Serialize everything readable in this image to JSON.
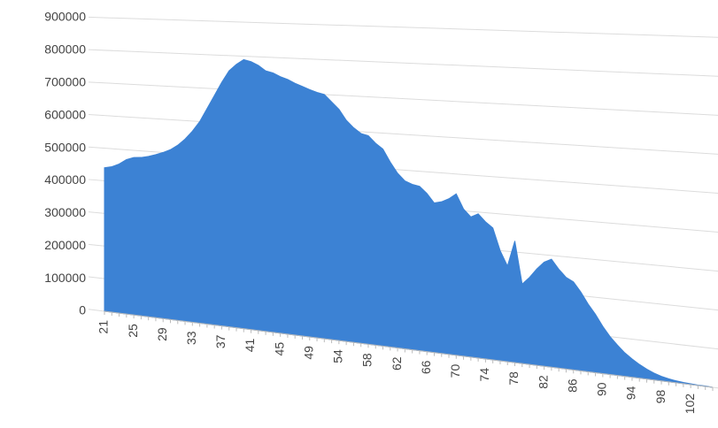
{
  "chart_data": {
    "type": "area",
    "categories": [
      21,
      null,
      null,
      null,
      25,
      null,
      null,
      null,
      29,
      null,
      null,
      null,
      33,
      null,
      null,
      null,
      37,
      null,
      null,
      null,
      41,
      null,
      null,
      null,
      45,
      null,
      null,
      null,
      49,
      null,
      null,
      null,
      54,
      null,
      null,
      null,
      58,
      null,
      null,
      null,
      62,
      null,
      null,
      null,
      66,
      null,
      null,
      null,
      70,
      null,
      null,
      null,
      74,
      null,
      null,
      null,
      78,
      null,
      null,
      null,
      82,
      null,
      null,
      null,
      86,
      null,
      null,
      null,
      90,
      null,
      null,
      null,
      94,
      null,
      null,
      null,
      98,
      null,
      null,
      null,
      102,
      null,
      null,
      null
    ],
    "values": [
      440000,
      445000,
      455000,
      470000,
      478000,
      480000,
      485000,
      492000,
      500000,
      510000,
      525000,
      545000,
      570000,
      600000,
      640000,
      680000,
      720000,
      755000,
      775000,
      790000,
      785000,
      775000,
      760000,
      755000,
      745000,
      738000,
      728000,
      720000,
      712000,
      705000,
      700000,
      680000,
      660000,
      630000,
      610000,
      595000,
      590000,
      570000,
      555000,
      520000,
      490000,
      470000,
      462000,
      458000,
      440000,
      415000,
      420000,
      430000,
      445000,
      405000,
      385000,
      395000,
      375000,
      360000,
      300000,
      260000,
      330000,
      215000,
      235000,
      260000,
      280000,
      290000,
      265000,
      245000,
      235000,
      210000,
      180000,
      155000,
      125000,
      100000,
      80000,
      62000,
      48000,
      36000,
      26000,
      18000,
      12000,
      8000,
      5000,
      3000,
      2000,
      1000,
      1000,
      0
    ],
    "color": "#3c82d4",
    "ylim": [
      0,
      900000
    ],
    "yticks": [
      0,
      100000,
      200000,
      300000,
      400000,
      500000,
      600000,
      700000,
      800000,
      900000
    ],
    "grid": true
  }
}
